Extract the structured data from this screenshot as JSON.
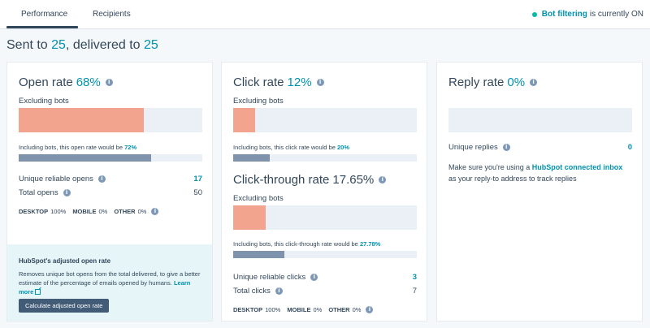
{
  "tabs": {
    "performance": "Performance",
    "recipients": "Recipients"
  },
  "bot_filter": {
    "link": "Bot filtering",
    "text": "is currently ON"
  },
  "headline": {
    "sent_prefix": "Sent to ",
    "sent": "25",
    "delivered_prefix": ", delivered to ",
    "delivered": "25"
  },
  "open": {
    "title": "Open rate",
    "pct": "68%",
    "excluding_label": "Excluding bots",
    "excluding_fill": 0.68,
    "note_prefix": "Including bots, this open rate would be",
    "note_value": "72%",
    "including_fill": 0.72,
    "unique_label": "Unique reliable opens",
    "unique_value": "17",
    "total_label": "Total opens",
    "total_value": "50",
    "devices": [
      {
        "name": "DESKTOP",
        "pct": "100%"
      },
      {
        "name": "MOBILE",
        "pct": "0%"
      },
      {
        "name": "OTHER",
        "pct": "0%"
      }
    ]
  },
  "promo": {
    "title": "HubSpot's adjusted open rate",
    "body": "Removes unique bot opens from the total delivered, to give a better estimate of the percentage of emails opened by humans.",
    "learn_more": "Learn more",
    "button": "Calculate adjusted open rate"
  },
  "click": {
    "title": "Click rate",
    "pct": "12%",
    "excluding_label": "Excluding bots",
    "excluding_fill": 0.12,
    "note_prefix": "Including bots, this click rate would be",
    "note_value": "20%",
    "including_fill": 0.2
  },
  "ctr": {
    "title": "Click-through rate",
    "pct": "17.65%",
    "excluding_label": "Excluding bots",
    "excluding_fill": 0.1765,
    "note_prefix": "Including bots, this click-through rate would be",
    "note_value": "27.78%",
    "including_fill": 0.2778,
    "unique_label": "Unique reliable clicks",
    "unique_value": "3",
    "total_label": "Total clicks",
    "total_value": "7",
    "devices": [
      {
        "name": "DESKTOP",
        "pct": "100%"
      },
      {
        "name": "MOBILE",
        "pct": "0%"
      },
      {
        "name": "OTHER",
        "pct": "0%"
      }
    ]
  },
  "reply": {
    "title": "Reply rate",
    "pct": "0%",
    "fill": 0,
    "unique_label": "Unique replies",
    "unique_value": "0",
    "text_prefix": "Make sure you're using a",
    "text_link": "HubSpot connected inbox",
    "text_suffix": "as your reply-to address to track replies"
  },
  "colors": {
    "accent": "#0091ae",
    "bar_fill": "#f2a48f",
    "bar_track": "#eaf0f6",
    "thin_fill": "#7f93ad",
    "promo_bg": "#e5f5f8",
    "button_bg": "#425b76",
    "status_dot": "#00bda5"
  }
}
